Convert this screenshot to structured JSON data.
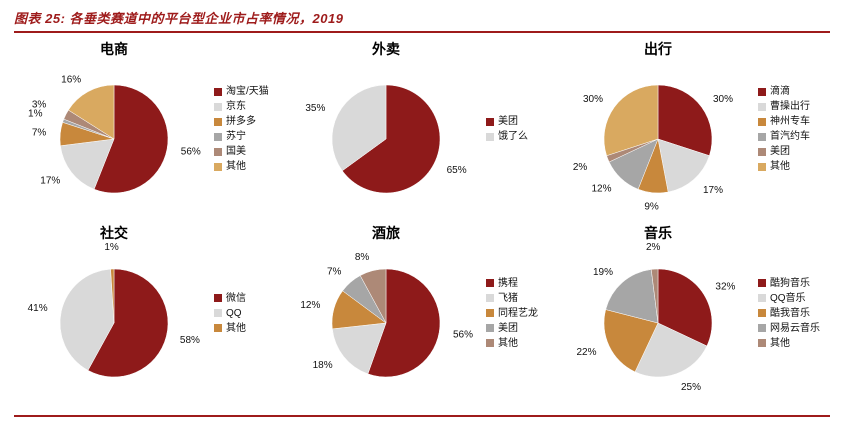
{
  "header": {
    "title": "图表 25: 各垂类赛道中的平台型企业市占率情况，2019"
  },
  "palette": {
    "dark_red": "#8e1a1a",
    "light_gray": "#d9d9d9",
    "orange": "#c8883c",
    "mid_gray": "#a6a6a6",
    "rosy_brown": "#ad8977",
    "tan": "#d9a960",
    "rule_red": "#9e1b1b"
  },
  "chart_data": [
    {
      "id": "ecommerce",
      "type": "pie",
      "title": "电商",
      "slices": [
        {
          "label": "淘宝/天猫",
          "value": 56,
          "color": "#8e1a1a"
        },
        {
          "label": "京东",
          "value": 17,
          "color": "#d9d9d9"
        },
        {
          "label": "拼多多",
          "value": 7,
          "color": "#c8883c"
        },
        {
          "label": "苏宁",
          "value": 1,
          "color": "#a6a6a6"
        },
        {
          "label": "国美",
          "value": 3,
          "color": "#ad8977"
        },
        {
          "label": "其他",
          "value": 16,
          "color": "#d9a960"
        }
      ]
    },
    {
      "id": "food-delivery",
      "type": "pie",
      "title": "外卖",
      "slices": [
        {
          "label": "美团",
          "value": 65,
          "color": "#8e1a1a"
        },
        {
          "label": "饿了么",
          "value": 35,
          "color": "#d9d9d9"
        }
      ]
    },
    {
      "id": "mobility",
      "type": "pie",
      "title": "出行",
      "slices": [
        {
          "label": "滴滴",
          "value": 30,
          "color": "#8e1a1a"
        },
        {
          "label": "曹操出行",
          "value": 17,
          "color": "#d9d9d9"
        },
        {
          "label": "神州专车",
          "value": 9,
          "color": "#c8883c"
        },
        {
          "label": "首汽约车",
          "value": 12,
          "color": "#a6a6a6"
        },
        {
          "label": "美团",
          "value": 2,
          "color": "#ad8977"
        },
        {
          "label": "其他",
          "value": 30,
          "color": "#d9a960"
        }
      ]
    },
    {
      "id": "social",
      "type": "pie",
      "title": "社交",
      "slices": [
        {
          "label": "微信",
          "value": 58,
          "color": "#8e1a1a"
        },
        {
          "label": "QQ",
          "value": 41,
          "color": "#d9d9d9"
        },
        {
          "label": "其他",
          "value": 1,
          "color": "#c8883c"
        }
      ]
    },
    {
      "id": "hotel-travel",
      "type": "pie",
      "title": "酒旅",
      "slices": [
        {
          "label": "携程",
          "value": 56,
          "color": "#8e1a1a"
        },
        {
          "label": "飞猪",
          "value": 18,
          "color": "#d9d9d9"
        },
        {
          "label": "同程艺龙",
          "value": 12,
          "color": "#c8883c"
        },
        {
          "label": "美团",
          "value": 7,
          "color": "#a6a6a6"
        },
        {
          "label": "其他",
          "value": 8,
          "color": "#ad8977"
        }
      ]
    },
    {
      "id": "music",
      "type": "pie",
      "title": "音乐",
      "slices": [
        {
          "label": "酷狗音乐",
          "value": 32,
          "color": "#8e1a1a"
        },
        {
          "label": "QQ音乐",
          "value": 25,
          "color": "#d9d9d9"
        },
        {
          "label": "酷我音乐",
          "value": 22,
          "color": "#c8883c"
        },
        {
          "label": "网易云音乐",
          "value": 19,
          "color": "#a6a6a6"
        },
        {
          "label": "其他",
          "value": 2,
          "color": "#ad8977"
        }
      ]
    }
  ]
}
